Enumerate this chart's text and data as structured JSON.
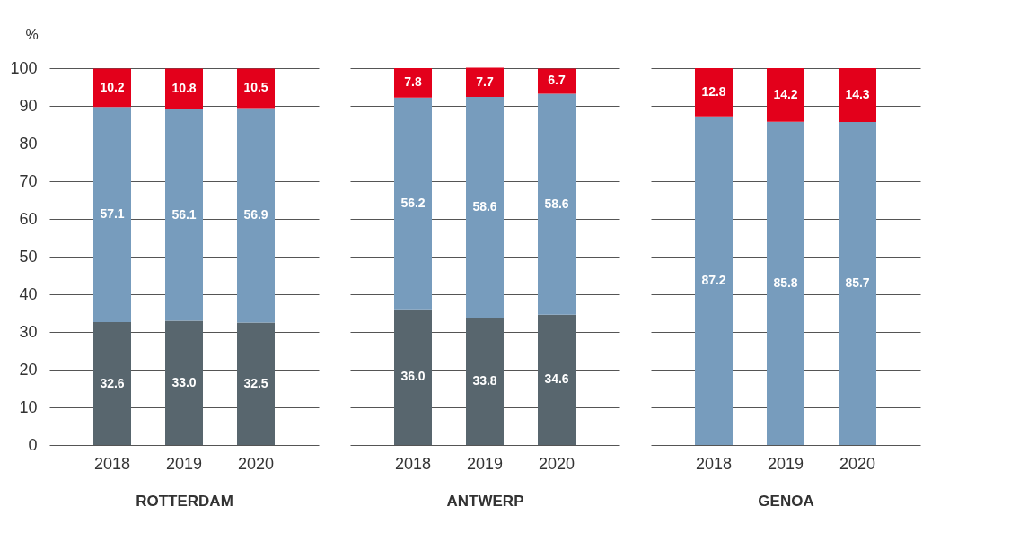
{
  "chart_data": [
    {
      "type": "bar",
      "stacked": true,
      "xlabel": "ROTTERDAM",
      "ylabel": "%",
      "categories": [
        "2018",
        "2019",
        "2020"
      ],
      "ylim": [
        0,
        100
      ],
      "yticks": [
        0,
        10,
        20,
        30,
        40,
        50,
        60,
        70,
        80,
        90,
        100
      ],
      "grid": "y",
      "series": [
        {
          "color": "#58666e",
          "values": [
            32.6,
            33.0,
            32.5
          ],
          "value_labels": [
            "32.6",
            "33.0",
            "32.5"
          ]
        },
        {
          "color": "#779cbd",
          "values": [
            57.1,
            56.1,
            56.9
          ],
          "value_labels": [
            "57.1",
            "56.1",
            "56.9"
          ]
        },
        {
          "color": "#e3001b",
          "values": [
            10.2,
            10.8,
            10.5
          ],
          "value_labels": [
            "10.2",
            "10.8",
            "10.5"
          ]
        }
      ]
    },
    {
      "type": "bar",
      "stacked": true,
      "xlabel": "ANTWERP",
      "categories": [
        "2018",
        "2019",
        "2020"
      ],
      "ylim": [
        0,
        100
      ],
      "yticks": [
        0,
        10,
        20,
        30,
        40,
        50,
        60,
        70,
        80,
        90,
        100
      ],
      "grid": "y",
      "tick_labels": "x",
      "series": [
        {
          "color": "#58666e",
          "values": [
            36.0,
            33.8,
            34.6
          ],
          "value_labels": [
            "36.0",
            "33.8",
            "34.6"
          ]
        },
        {
          "color": "#779cbd",
          "values": [
            56.2,
            58.6,
            58.6
          ],
          "value_labels": [
            "56.2",
            "58.6",
            "58.6"
          ]
        },
        {
          "color": "#e3001b",
          "values": [
            7.8,
            7.7,
            6.7
          ],
          "value_labels": [
            "7.8",
            "7.7",
            "6.7"
          ]
        }
      ]
    },
    {
      "type": "bar",
      "stacked": true,
      "xlabel": "GENOA",
      "categories": [
        "2018",
        "2019",
        "2020"
      ],
      "ylim": [
        0,
        100
      ],
      "yticks": [
        0,
        10,
        20,
        30,
        40,
        50,
        60,
        70,
        80,
        90,
        100
      ],
      "grid": "y",
      "tick_labels": "x",
      "series": [
        {
          "color": "#779cbd",
          "values": [
            87.2,
            85.8,
            85.7
          ],
          "value_labels": [
            "87.2",
            "85.8",
            "85.7"
          ]
        },
        {
          "color": "#e3001b",
          "values": [
            12.8,
            14.2,
            14.3
          ],
          "value_labels": [
            "12.8",
            "14.2",
            "14.3"
          ]
        }
      ]
    }
  ]
}
